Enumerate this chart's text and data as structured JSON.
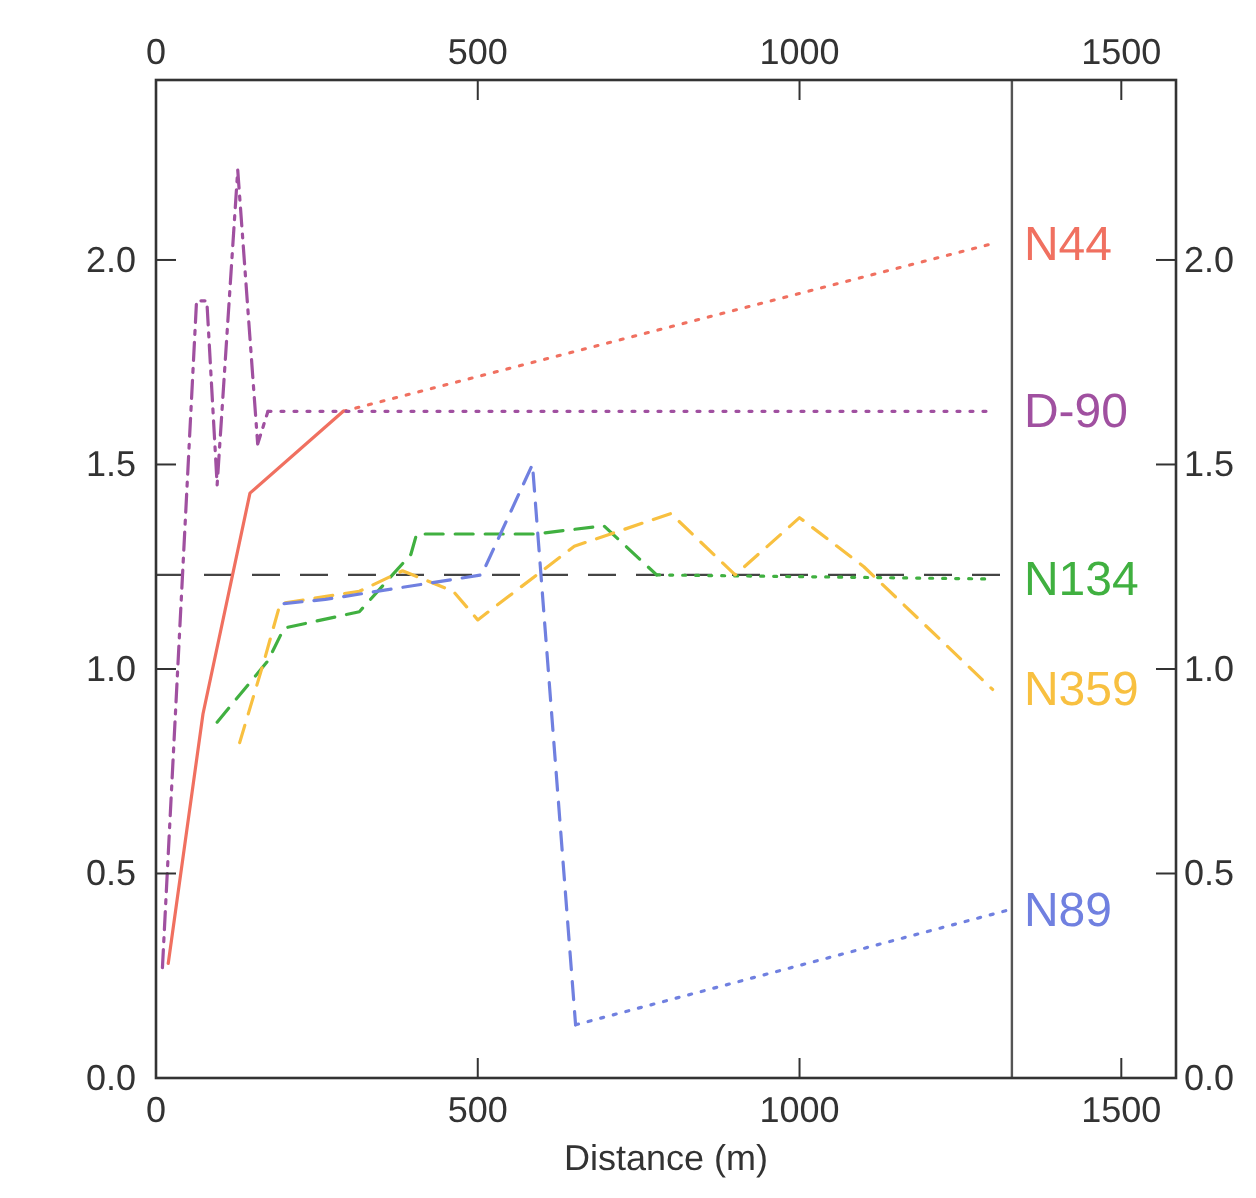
{
  "chart_data": {
    "type": "line",
    "xlabel": "Distance (m)",
    "xlim": [
      0,
      1585
    ],
    "ylim": [
      0,
      2.44
    ],
    "x2lim": [
      0,
      1585
    ],
    "y2lim": [
      0,
      2.44
    ],
    "xticks": [
      0,
      500,
      1000,
      1500
    ],
    "x2ticks": [
      0,
      500,
      1000,
      1500
    ],
    "yticks": [
      {
        "value": 0,
        "label": "0.0"
      },
      {
        "value": 0.5,
        "label": "0.5"
      },
      {
        "value": 1,
        "label": "1.0"
      },
      {
        "value": 1.5,
        "label": "1.5"
      },
      {
        "value": 2,
        "label": "2.0"
      }
    ],
    "y2ticks": [
      {
        "value": 0,
        "label": "0.0"
      },
      {
        "value": 0.5,
        "label": "0.5"
      },
      {
        "value": 1,
        "label": "1.0"
      },
      {
        "value": 1.5,
        "label": "1.5"
      },
      {
        "value": 2,
        "label": "2.0"
      }
    ],
    "marker": "none",
    "ref_lines": [
      {
        "axis": "y",
        "value": 1.23,
        "color": "#444444",
        "line_style": "dashed"
      },
      {
        "axis": "x",
        "value": 1330,
        "color": "#555555",
        "line_style": "solid"
      }
    ],
    "series": [
      {
        "name": "N44",
        "color": "#f07060",
        "line_style": "solid",
        "x": [
          19,
          73,
          146,
          291
        ],
        "values": [
          0.28,
          0.89,
          1.43,
          1.63
        ]
      },
      {
        "color": "#f07060",
        "line_style": "dotted",
        "x": [
          291,
          1300
        ],
        "values": [
          1.63,
          2.04
        ]
      },
      {
        "name": "D-90",
        "color": "#a050a0",
        "line_style": "dashdot",
        "x": [
          10,
          63,
          79,
          95,
          127,
          158,
          174
        ],
        "values": [
          0.27,
          1.9,
          1.9,
          1.45,
          2.22,
          1.55,
          1.63
        ]
      },
      {
        "color": "#a050a0",
        "line_style": "dotted",
        "x": [
          174,
          1300
        ],
        "values": [
          1.63,
          1.63
        ]
      },
      {
        "name": "N134",
        "color": "#40b040",
        "line_style": "dashed",
        "x": [
          95,
          174,
          199,
          316,
          396,
          405,
          589,
          696,
          778
        ],
        "values": [
          0.87,
          1.02,
          1.1,
          1.14,
          1.28,
          1.33,
          1.33,
          1.35,
          1.23
        ]
      },
      {
        "color": "#40b040",
        "line_style": "dotted",
        "x": [
          778,
          1300
        ],
        "values": [
          1.23,
          1.22
        ]
      },
      {
        "name": "N359",
        "color": "#f8c040",
        "line_style": "dashed",
        "x": [
          130,
          168,
          193,
          316,
          383,
          462,
          500,
          650,
          800,
          900,
          1000,
          1100,
          1300
        ],
        "values": [
          0.82,
          1.02,
          1.16,
          1.19,
          1.24,
          1.19,
          1.12,
          1.3,
          1.38,
          1.23,
          1.37,
          1.25,
          0.95
        ]
      },
      {
        "name": "N89",
        "color": "#7080e0",
        "line_style": "dashed",
        "x": [
          199,
          263,
          506,
          585,
          652
        ],
        "values": [
          1.16,
          1.17,
          1.23,
          1.5,
          0.13
        ]
      },
      {
        "color": "#7080e0",
        "line_style": "dotted",
        "x": [
          652,
          1323
        ],
        "values": [
          0.13,
          0.41
        ]
      }
    ]
  }
}
